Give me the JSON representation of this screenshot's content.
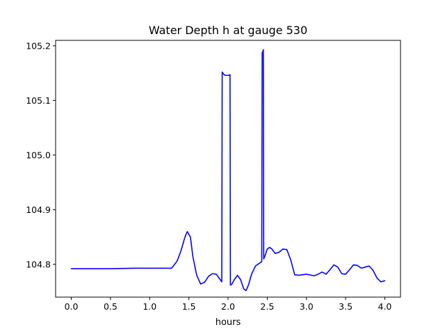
{
  "chart_data": {
    "type": "line",
    "title": "Water Depth h at gauge 530",
    "xlabel": "hours",
    "ylabel": "",
    "xlim": [
      -0.2,
      4.2
    ],
    "ylim": [
      104.74,
      105.21
    ],
    "xticks": [
      0.0,
      0.5,
      1.0,
      1.5,
      2.0,
      2.5,
      3.0,
      3.5,
      4.0
    ],
    "xtick_labels": [
      "0.0",
      "0.5",
      "1.0",
      "1.5",
      "2.0",
      "2.5",
      "3.0",
      "3.5",
      "4.0"
    ],
    "yticks": [
      104.8,
      104.9,
      105.0,
      105.1,
      105.2
    ],
    "ytick_labels": [
      "104.8",
      "104.9",
      "105.0",
      "105.1",
      "105.2"
    ],
    "grid": false,
    "legend": "none",
    "series": [
      {
        "color": "#0000ff",
        "x": [
          0.0,
          0.2,
          0.5,
          0.8,
          1.0,
          1.2,
          1.28,
          1.35,
          1.4,
          1.45,
          1.48,
          1.52,
          1.55,
          1.6,
          1.65,
          1.7,
          1.75,
          1.8,
          1.85,
          1.9,
          1.92,
          1.925,
          1.95,
          1.97,
          1.99,
          2.01,
          2.025,
          2.03,
          2.05,
          2.08,
          2.12,
          2.16,
          2.2,
          2.23,
          2.26,
          2.3,
          2.35,
          2.4,
          2.43,
          2.435,
          2.445,
          2.45,
          2.455,
          2.47,
          2.5,
          2.53,
          2.56,
          2.6,
          2.65,
          2.7,
          2.75,
          2.8,
          2.85,
          2.9,
          3.0,
          3.1,
          3.15,
          3.2,
          3.25,
          3.3,
          3.35,
          3.4,
          3.45,
          3.5,
          3.55,
          3.6,
          3.65,
          3.7,
          3.75,
          3.8,
          3.85,
          3.9,
          3.95,
          4.0
        ],
        "y": [
          104.792,
          104.792,
          104.792,
          104.793,
          104.793,
          104.793,
          104.793,
          104.806,
          104.825,
          104.85,
          104.86,
          104.85,
          104.815,
          104.78,
          104.764,
          104.767,
          104.778,
          104.783,
          104.782,
          104.772,
          104.768,
          105.152,
          105.147,
          105.146,
          105.146,
          105.146,
          105.147,
          104.762,
          104.764,
          104.772,
          104.78,
          104.772,
          104.755,
          104.752,
          104.762,
          104.782,
          104.797,
          104.802,
          104.805,
          105.187,
          105.19,
          105.193,
          104.81,
          104.815,
          104.828,
          104.831,
          104.828,
          104.82,
          104.822,
          104.828,
          104.827,
          104.808,
          104.781,
          104.78,
          104.782,
          104.779,
          104.782,
          104.786,
          104.782,
          104.79,
          104.799,
          104.795,
          104.783,
          104.782,
          104.79,
          104.799,
          104.798,
          104.793,
          104.795,
          104.797,
          104.789,
          104.775,
          104.768,
          104.77
        ]
      }
    ]
  }
}
